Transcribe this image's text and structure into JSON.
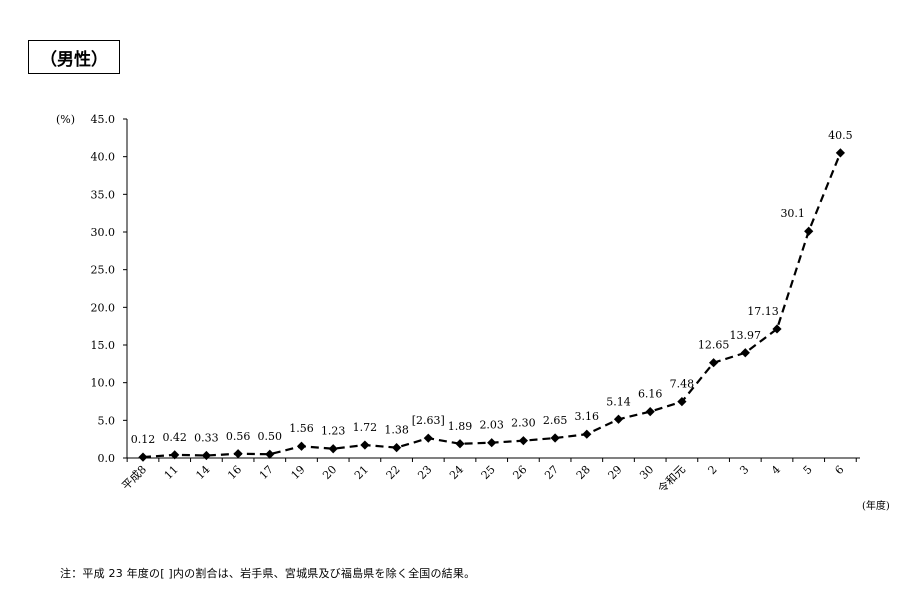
{
  "title": "（男性）",
  "note": "注：平成 23 年度の[ ]内の割合は、岩手県、宮城県及び福島県を除く全国の結果。",
  "chart_data": {
    "type": "line",
    "title": "（男性）",
    "ylabel": "(%)",
    "xlabel": "(年度)",
    "ylim": [
      0,
      45
    ],
    "yticks": [
      "0.0",
      "5.0",
      "10.0",
      "15.0",
      "20.0",
      "25.0",
      "30.0",
      "35.0",
      "40.0",
      "45.0"
    ],
    "grid": false,
    "line_style": "dashed",
    "marker": "diamond",
    "categories": [
      "平成8",
      "11",
      "14",
      "16",
      "17",
      "19",
      "20",
      "21",
      "22",
      "23",
      "24",
      "25",
      "26",
      "27",
      "28",
      "29",
      "30",
      "令和元",
      "2",
      "3",
      "4",
      "5",
      "6"
    ],
    "values": [
      0.12,
      0.42,
      0.33,
      0.56,
      0.5,
      1.56,
      1.23,
      1.72,
      1.38,
      2.63,
      1.89,
      2.03,
      2.3,
      2.65,
      3.16,
      5.14,
      6.16,
      7.48,
      12.65,
      13.97,
      17.13,
      30.1,
      40.5
    ],
    "data_labels": [
      "0.12",
      "0.42",
      "0.33",
      "0.56",
      "0.50",
      "1.56",
      "1.23",
      "1.72",
      "1.38",
      "[2.63]",
      "1.89",
      "2.03",
      "2.30",
      "2.65",
      "3.16",
      "5.14",
      "6.16",
      "7.48",
      "12.65",
      "13.97",
      "17.13",
      "30.1",
      "40.5"
    ]
  }
}
